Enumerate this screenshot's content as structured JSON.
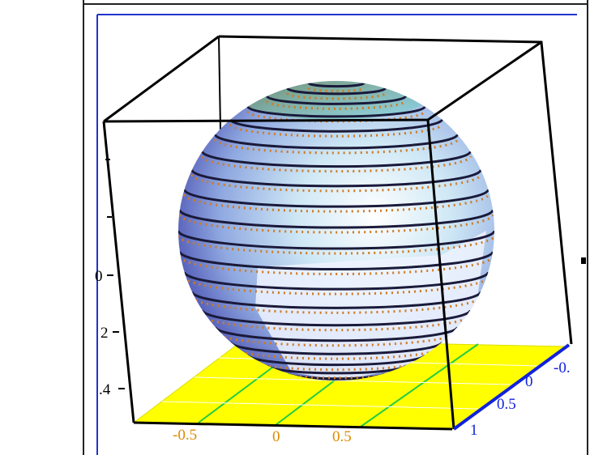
{
  "left_axis_labels": [
    "0",
    "2",
    ".4"
  ],
  "bottom_axis_labels": [
    "-0.5",
    "0",
    "0.5"
  ],
  "right_axis_labels": [
    "1",
    "0.5",
    "0",
    "-0."
  ]
}
